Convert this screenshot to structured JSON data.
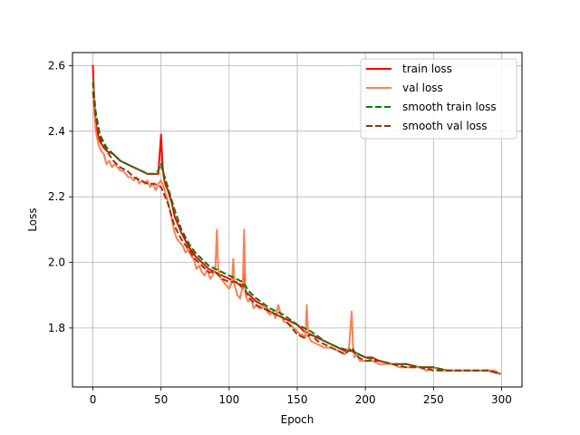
{
  "chart_data": {
    "type": "line",
    "title": "",
    "xlabel": "Epoch",
    "ylabel": "Loss",
    "xlim": [
      -15,
      315
    ],
    "ylim": [
      1.62,
      2.64
    ],
    "xticks": [
      0,
      50,
      100,
      150,
      200,
      250,
      300
    ],
    "yticks": [
      1.8,
      2.0,
      2.2,
      2.4,
      2.6
    ],
    "grid": true,
    "legend_position": "top-right",
    "series": [
      {
        "name": "train loss",
        "color": "#ff0000",
        "style": "solid",
        "x": [
          0,
          1,
          2,
          3,
          5,
          8,
          10,
          15,
          20,
          25,
          30,
          35,
          40,
          45,
          48,
          49,
          50,
          51,
          52,
          53,
          55,
          58,
          60,
          65,
          70,
          75,
          80,
          85,
          90,
          95,
          100,
          105,
          108,
          110,
          111,
          112,
          115,
          120,
          125,
          130,
          135,
          140,
          145,
          150,
          155,
          160,
          165,
          170,
          175,
          180,
          185,
          190,
          195,
          200,
          205,
          210,
          220,
          230,
          240,
          250,
          260,
          270,
          280,
          290,
          299
        ],
        "y": [
          2.6,
          2.49,
          2.43,
          2.4,
          2.37,
          2.35,
          2.34,
          2.33,
          2.31,
          2.3,
          2.29,
          2.28,
          2.27,
          2.27,
          2.27,
          2.33,
          2.39,
          2.3,
          2.26,
          2.24,
          2.22,
          2.18,
          2.14,
          2.09,
          2.05,
          2.02,
          2.0,
          1.98,
          1.97,
          1.96,
          1.95,
          1.94,
          1.93,
          1.92,
          2.01,
          1.91,
          1.9,
          1.88,
          1.87,
          1.85,
          1.84,
          1.83,
          1.82,
          1.81,
          1.79,
          1.78,
          1.77,
          1.76,
          1.75,
          1.74,
          1.73,
          1.73,
          1.72,
          1.71,
          1.71,
          1.7,
          1.69,
          1.69,
          1.68,
          1.68,
          1.67,
          1.67,
          1.67,
          1.67,
          1.66
        ]
      },
      {
        "name": "val loss",
        "color": "#ff7f50",
        "style": "solid",
        "x": [
          0,
          1,
          2,
          3,
          4,
          6,
          8,
          10,
          12,
          14,
          16,
          18,
          20,
          22,
          24,
          26,
          28,
          30,
          32,
          34,
          36,
          38,
          40,
          42,
          44,
          46,
          48,
          50,
          52,
          54,
          56,
          58,
          60,
          62,
          64,
          66,
          68,
          70,
          72,
          74,
          76,
          78,
          80,
          82,
          84,
          86,
          88,
          90,
          91,
          92,
          94,
          96,
          98,
          100,
          102,
          103,
          104,
          106,
          108,
          110,
          111,
          112,
          114,
          116,
          118,
          120,
          122,
          124,
          126,
          128,
          130,
          132,
          134,
          136,
          138,
          140,
          145,
          150,
          152,
          154,
          156,
          157,
          158,
          160,
          165,
          170,
          175,
          180,
          185,
          188,
          190,
          191,
          192,
          194,
          196,
          200,
          205,
          210,
          215,
          220,
          225,
          230,
          235,
          240,
          245,
          250,
          255,
          260,
          265,
          270,
          275,
          280,
          285,
          290,
          295,
          299
        ],
        "y": [
          2.55,
          2.47,
          2.4,
          2.38,
          2.36,
          2.34,
          2.33,
          2.3,
          2.31,
          2.29,
          2.3,
          2.29,
          2.28,
          2.28,
          2.27,
          2.26,
          2.26,
          2.25,
          2.26,
          2.24,
          2.25,
          2.24,
          2.25,
          2.23,
          2.24,
          2.22,
          2.24,
          2.25,
          2.23,
          2.2,
          2.17,
          2.13,
          2.09,
          2.07,
          2.06,
          2.05,
          2.03,
          2.04,
          2.02,
          2.01,
          1.98,
          1.99,
          1.97,
          1.96,
          1.98,
          1.95,
          1.96,
          1.99,
          2.1,
          1.98,
          1.95,
          1.94,
          1.93,
          1.92,
          1.94,
          2.01,
          1.93,
          1.9,
          1.89,
          1.93,
          2.1,
          1.9,
          1.88,
          1.89,
          1.86,
          1.87,
          1.86,
          1.86,
          1.87,
          1.85,
          1.84,
          1.85,
          1.83,
          1.87,
          1.84,
          1.82,
          1.81,
          1.79,
          1.78,
          1.78,
          1.77,
          1.87,
          1.78,
          1.76,
          1.75,
          1.74,
          1.74,
          1.73,
          1.72,
          1.74,
          1.85,
          1.74,
          1.71,
          1.72,
          1.7,
          1.7,
          1.7,
          1.69,
          1.69,
          1.69,
          1.68,
          1.68,
          1.68,
          1.68,
          1.67,
          1.68,
          1.67,
          1.67,
          1.67,
          1.67,
          1.67,
          1.67,
          1.67,
          1.67,
          1.67,
          1.66
        ]
      },
      {
        "name": "smooth train loss",
        "color": "#008000",
        "style": "dashed",
        "x": [
          0,
          2,
          5,
          10,
          15,
          20,
          25,
          30,
          35,
          40,
          45,
          48,
          50,
          52,
          55,
          60,
          65,
          70,
          75,
          80,
          85,
          90,
          95,
          100,
          105,
          110,
          115,
          120,
          130,
          140,
          150,
          160,
          170,
          180,
          190,
          200,
          210,
          220,
          230,
          240,
          250,
          260,
          270,
          280,
          290,
          299
        ],
        "y": [
          2.55,
          2.46,
          2.39,
          2.35,
          2.33,
          2.31,
          2.3,
          2.29,
          2.28,
          2.27,
          2.27,
          2.28,
          2.3,
          2.27,
          2.23,
          2.16,
          2.1,
          2.06,
          2.03,
          2.01,
          1.99,
          1.98,
          1.97,
          1.96,
          1.95,
          1.94,
          1.91,
          1.89,
          1.86,
          1.84,
          1.81,
          1.79,
          1.76,
          1.74,
          1.73,
          1.71,
          1.7,
          1.69,
          1.69,
          1.68,
          1.68,
          1.67,
          1.67,
          1.67,
          1.67,
          1.66
        ]
      },
      {
        "name": "smooth val loss",
        "color": "#8b3a0f",
        "style": "dashed",
        "x": [
          0,
          2,
          5,
          10,
          15,
          20,
          25,
          30,
          35,
          40,
          45,
          50,
          55,
          60,
          65,
          70,
          75,
          80,
          85,
          90,
          95,
          100,
          105,
          110,
          115,
          120,
          130,
          140,
          150,
          155,
          160,
          165,
          170,
          180,
          185,
          190,
          195,
          200,
          210,
          220,
          230,
          240,
          250,
          260,
          270,
          280,
          290,
          299
        ],
        "y": [
          2.52,
          2.44,
          2.38,
          2.34,
          2.31,
          2.29,
          2.28,
          2.26,
          2.25,
          2.24,
          2.24,
          2.23,
          2.18,
          2.11,
          2.07,
          2.04,
          2.01,
          1.99,
          1.97,
          1.97,
          1.95,
          1.94,
          1.94,
          1.93,
          1.89,
          1.87,
          1.85,
          1.83,
          1.78,
          1.77,
          1.78,
          1.76,
          1.75,
          1.73,
          1.72,
          1.74,
          1.71,
          1.7,
          1.7,
          1.69,
          1.68,
          1.68,
          1.67,
          1.67,
          1.67,
          1.67,
          1.67,
          1.66
        ]
      }
    ]
  }
}
